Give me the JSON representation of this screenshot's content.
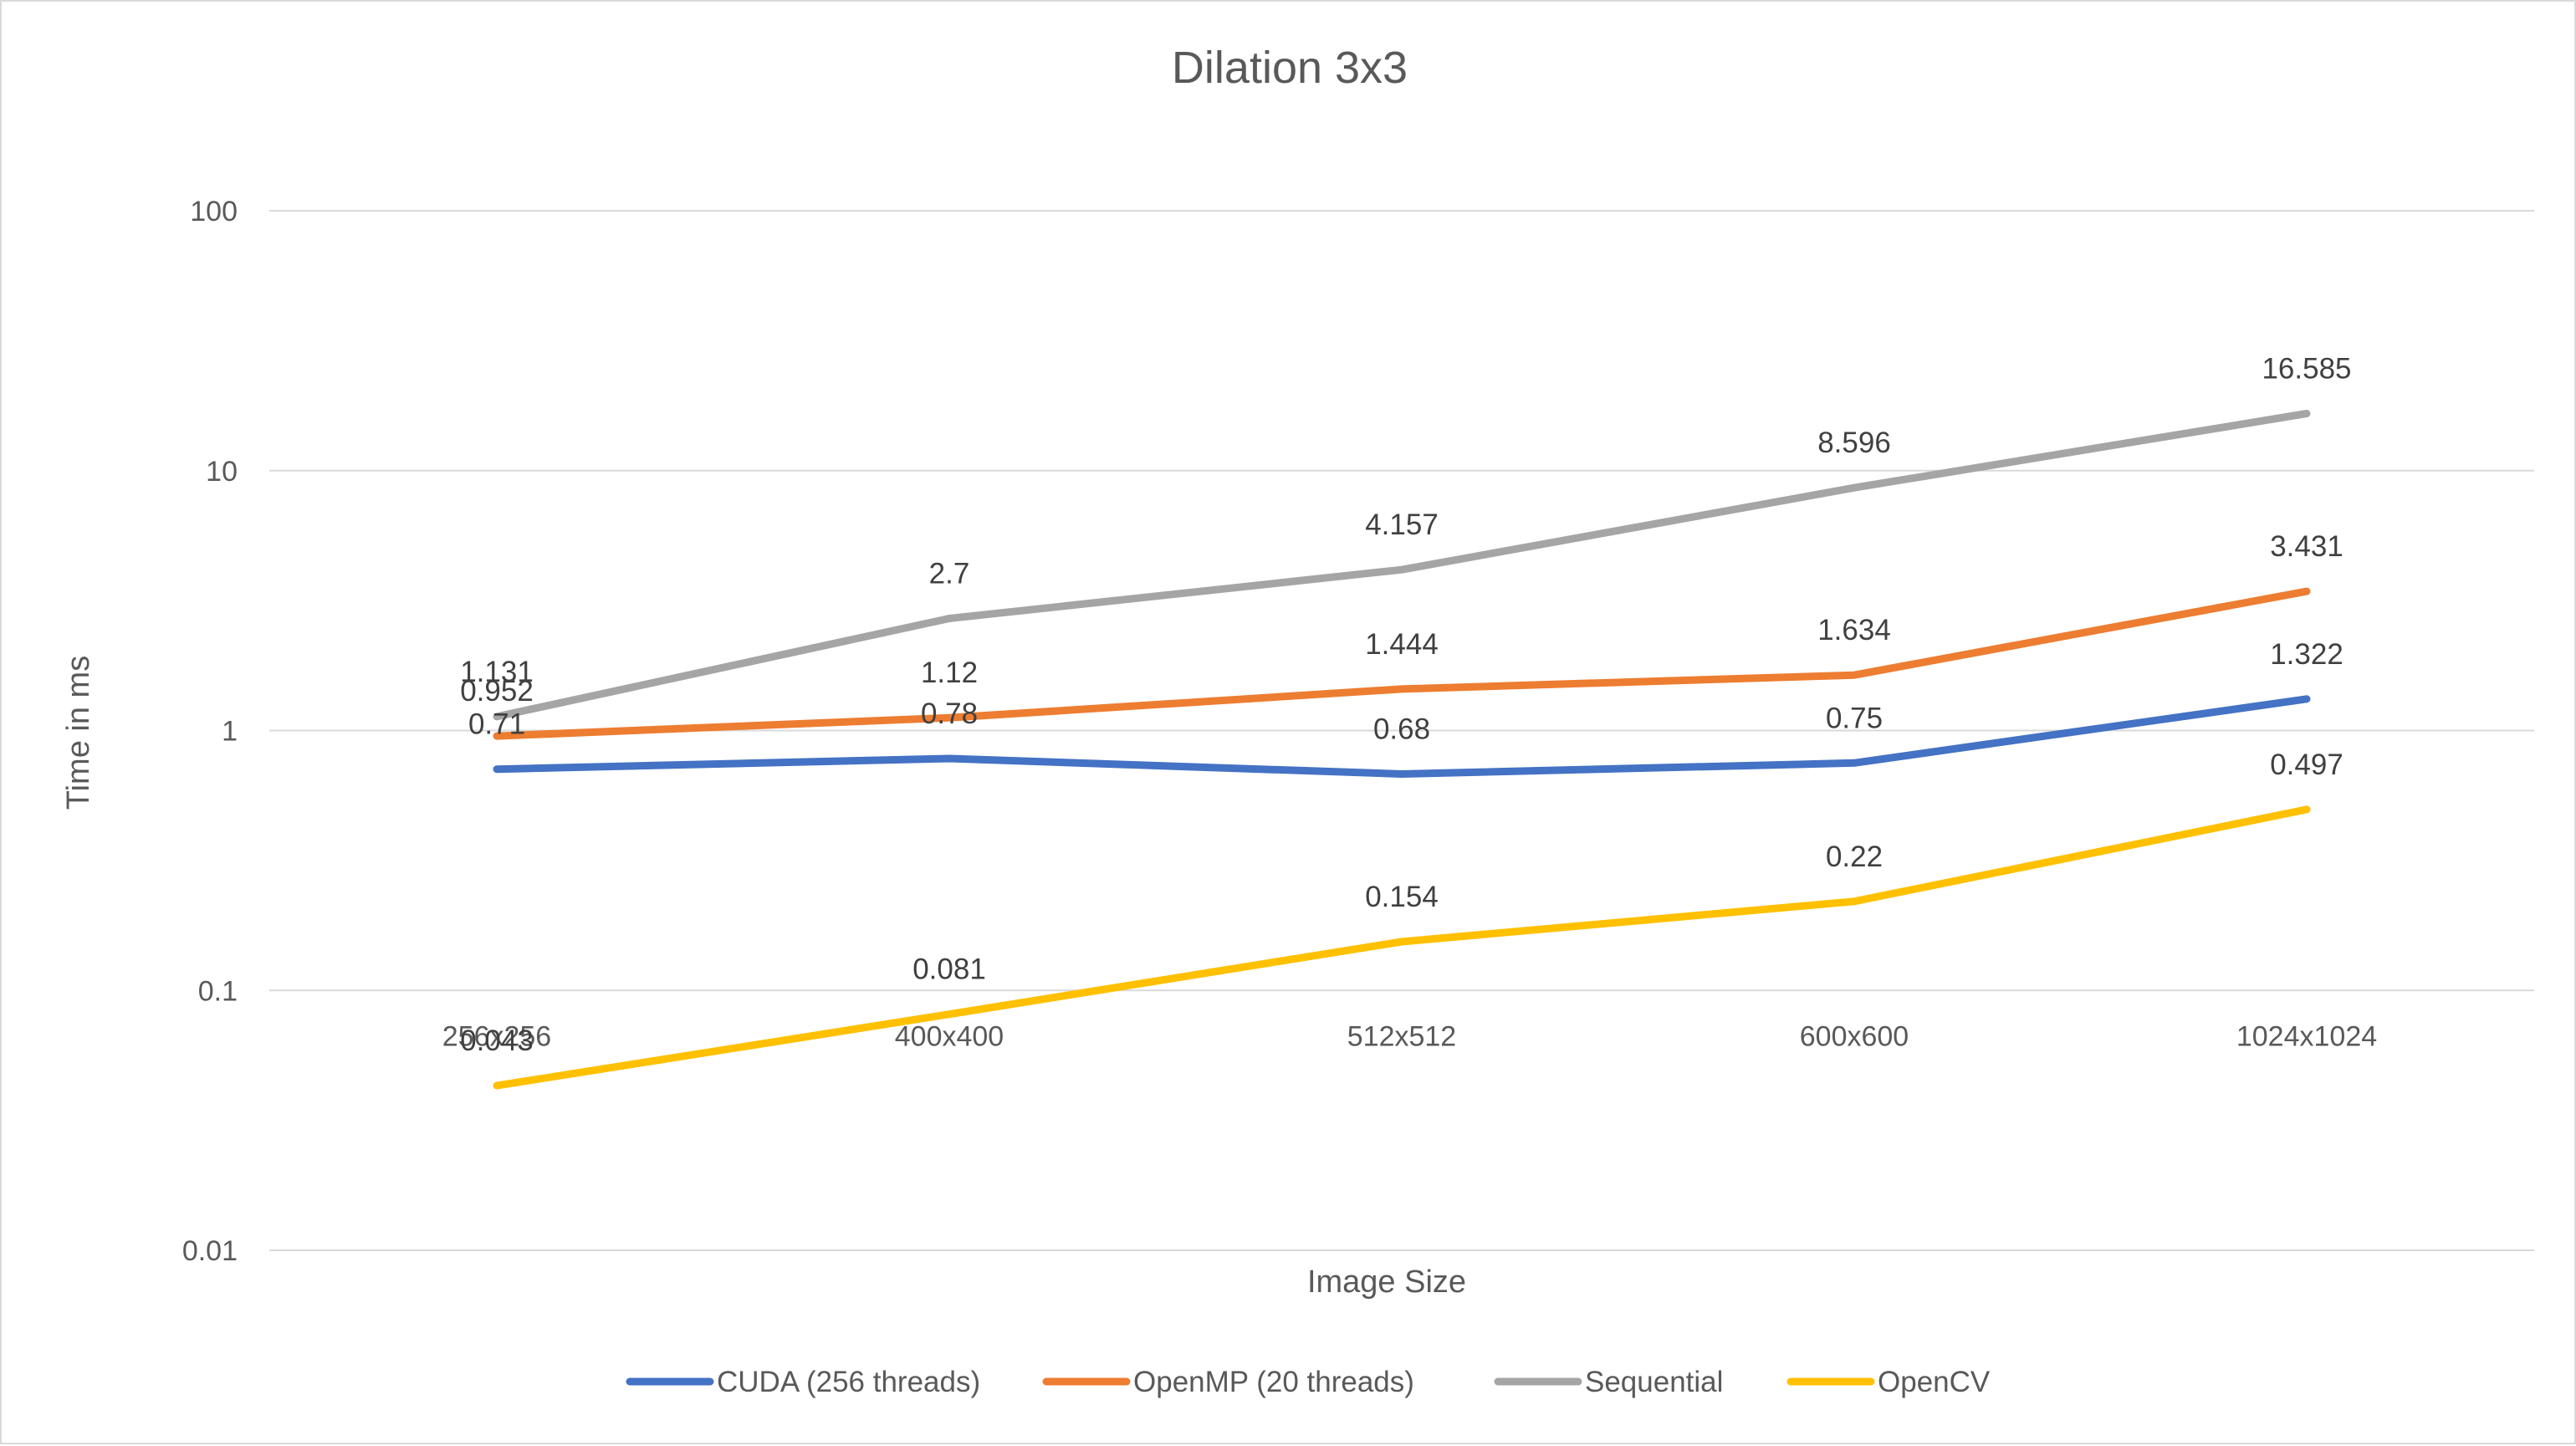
{
  "chart_data": {
    "type": "line",
    "title": "Dilation 3x3",
    "xlabel": "Image Size",
    "ylabel": "Time in ms",
    "yscale": "log",
    "ylim": [
      0.01,
      100
    ],
    "y_ticks": [
      "0.01",
      "0.1",
      "1",
      "10",
      "100"
    ],
    "categories": [
      "256x256",
      "400x400",
      "512x512",
      "600x600",
      "1024x1024"
    ],
    "grid": true,
    "legend_position": "bottom",
    "series": [
      {
        "name": "CUDA (256 threads)",
        "color": "#4472C4",
        "values": [
          0.71,
          0.78,
          0.68,
          0.75,
          1.322
        ],
        "labels": [
          "0.71",
          "0.78",
          "0.68",
          "0.75",
          "1.322"
        ]
      },
      {
        "name": "OpenMP (20 threads)",
        "color": "#ED7D31",
        "values": [
          0.952,
          1.12,
          1.444,
          1.634,
          3.431
        ],
        "labels": [
          "0.952",
          "1.12",
          "1.444",
          "1.634",
          "3.431"
        ]
      },
      {
        "name": "Sequential",
        "color": "#A5A5A5",
        "values": [
          1.131,
          2.7,
          4.157,
          8.596,
          16.585
        ],
        "labels": [
          "1.131",
          "2.7",
          "4.157",
          "8.596",
          "16.585"
        ]
      },
      {
        "name": "OpenCV",
        "color": "#FFC000",
        "values": [
          0.043,
          0.081,
          0.154,
          0.22,
          0.497
        ],
        "labels": [
          "0.043",
          "0.081",
          "0.154",
          "0.22",
          "0.497"
        ]
      }
    ]
  }
}
